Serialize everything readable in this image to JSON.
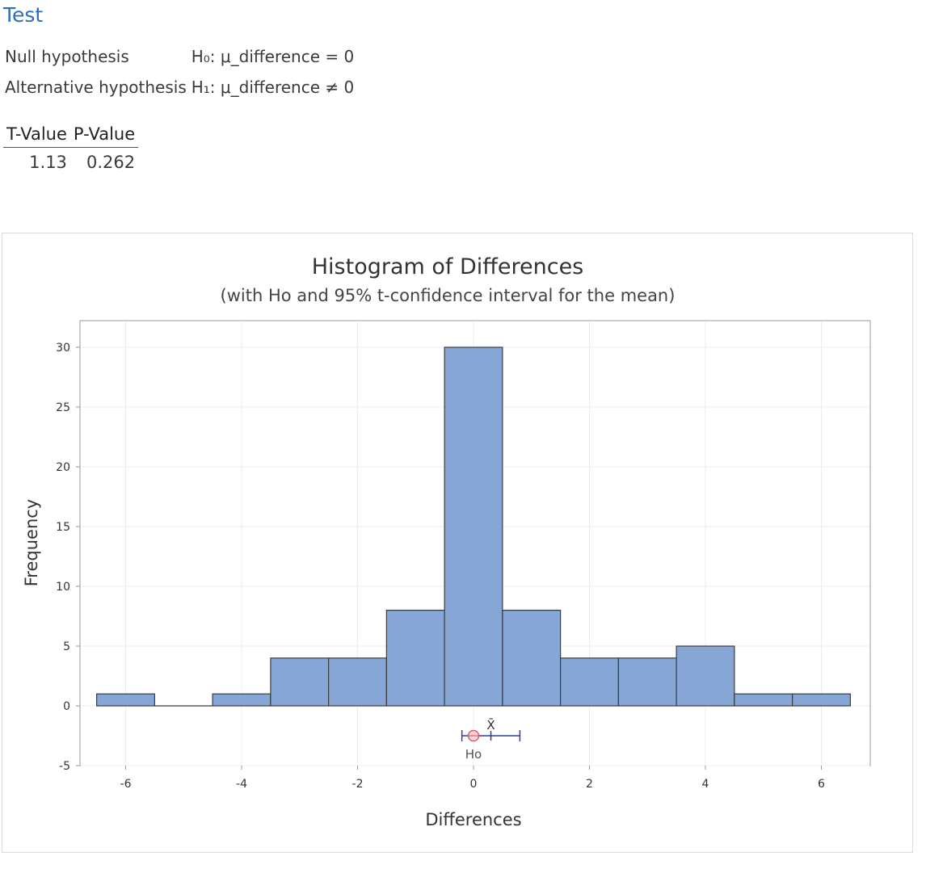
{
  "test": {
    "title": "Test",
    "null_label": "Null hypothesis",
    "null_value": "H₀: μ_difference = 0",
    "alt_label": "Alternative hypothesis",
    "alt_value": "H₁: μ_difference ≠ 0"
  },
  "stats": {
    "headers": [
      "T-Value",
      "P-Value"
    ],
    "t_value": "1.13",
    "p_value": "0.262"
  },
  "colors": {
    "bar_fill": "#86a6d6",
    "bar_stroke": "#3c3c3c",
    "ci_line": "#2b3fa0",
    "h0_marker": "#e05a6a",
    "grid": "#ececec"
  },
  "chart_data": {
    "type": "bar",
    "title": "Histogram of Differences",
    "subtitle": "(with Ho and 95% t-confidence interval for the mean)",
    "xlabel": "Differences",
    "ylabel": "Frequency",
    "xlim": [
      -6.5,
      6.5
    ],
    "ylim": [
      -5,
      32
    ],
    "xticks": [
      -6,
      -4,
      -2,
      0,
      2,
      4,
      6
    ],
    "yticks": [
      -5,
      0,
      5,
      10,
      15,
      20,
      25,
      30
    ],
    "bins": [
      {
        "center": -6,
        "count": 1
      },
      {
        "center": -5,
        "count": 0
      },
      {
        "center": -4,
        "count": 1
      },
      {
        "center": -3,
        "count": 4
      },
      {
        "center": -2,
        "count": 4
      },
      {
        "center": -1,
        "count": 8
      },
      {
        "center": 0,
        "count": 30
      },
      {
        "center": 1,
        "count": 8
      },
      {
        "center": 2,
        "count": 4
      },
      {
        "center": 3,
        "count": 4
      },
      {
        "center": 4,
        "count": 5
      },
      {
        "center": 5,
        "count": 1
      },
      {
        "center": 6,
        "count": 1
      }
    ],
    "bin_width": 1,
    "mean_label": "X̄",
    "mean": 0.3,
    "ci": [
      -0.2,
      0.8
    ],
    "h0_label": "Ho",
    "h0": 0,
    "interval_y": -2.5
  }
}
